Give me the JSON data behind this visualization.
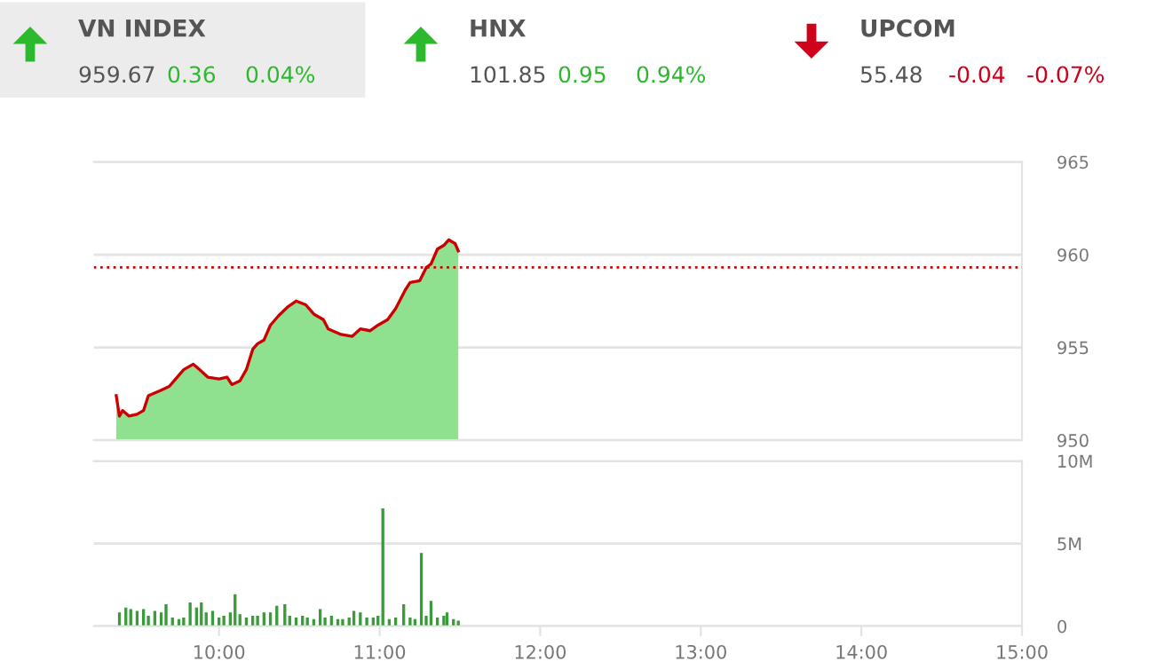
{
  "chart_data": [
    {
      "type": "other",
      "data_labels": true,
      "categories": [
        "VN INDEX",
        "HNX",
        "UPCOM"
      ],
      "colors": [
        "#2db92d",
        "#2db92d",
        "#d0021b"
      ],
      "series": [
        {
          "values": [
            959.67,
            101.85,
            55.48
          ]
        },
        {
          "values": [
            0.36,
            0.95,
            -0.04
          ]
        },
        {
          "values": [
            0.04,
            0.94,
            -0.07
          ],
          "value_labels": [
            "0.04%",
            "0.94%",
            "-0.07%"
          ]
        }
      ]
    },
    {
      "type": "area",
      "xlim": [
        9.22,
        15
      ],
      "ylim": [
        950,
        965
      ],
      "yticks": [
        950,
        955,
        960,
        965
      ],
      "grid": "y",
      "tick_labels": "y",
      "series": [
        {
          "type": "area",
          "color": "#8fe08f",
          "x": [
            9.36,
            9.38,
            9.4,
            9.44,
            9.49,
            9.53,
            9.56,
            9.64,
            9.69,
            9.73,
            9.78,
            9.84,
            9.88,
            9.93,
            10.0,
            10.05,
            10.08,
            10.13,
            10.17,
            10.21,
            10.24,
            10.28,
            10.32,
            10.37,
            10.43,
            10.48,
            10.54,
            10.59,
            10.65,
            10.68,
            10.76,
            10.83,
            10.88,
            10.94,
            10.99,
            11.05,
            11.1,
            11.16,
            11.19,
            11.25,
            11.29,
            11.32,
            11.36,
            11.4,
            11.43,
            11.47,
            11.49
          ],
          "values": [
            952.4,
            951.3,
            951.6,
            951.3,
            951.4,
            951.6,
            952.4,
            952.7,
            952.9,
            953.3,
            953.8,
            954.1,
            953.8,
            953.4,
            953.3,
            953.4,
            953.0,
            953.2,
            953.8,
            954.9,
            955.2,
            955.4,
            956.2,
            956.7,
            957.2,
            957.5,
            957.3,
            956.8,
            956.5,
            956.0,
            955.7,
            955.6,
            956.0,
            955.9,
            956.2,
            956.5,
            957.1,
            958.1,
            958.5,
            958.6,
            959.3,
            959.5,
            960.3,
            960.5,
            960.8,
            960.6,
            960.2
          ]
        },
        {
          "type": "line",
          "color": "#cc0000",
          "x": [
            9.36,
            9.38,
            9.4,
            9.44,
            9.49,
            9.53,
            9.56,
            9.64,
            9.69,
            9.73,
            9.78,
            9.84,
            9.88,
            9.93,
            10.0,
            10.05,
            10.08,
            10.13,
            10.17,
            10.21,
            10.24,
            10.28,
            10.32,
            10.37,
            10.43,
            10.48,
            10.54,
            10.59,
            10.65,
            10.68,
            10.76,
            10.83,
            10.88,
            10.94,
            10.99,
            11.05,
            11.1,
            11.16,
            11.19,
            11.25,
            11.29,
            11.32,
            11.36,
            11.4,
            11.43,
            11.47,
            11.49
          ],
          "values": [
            952.4,
            951.3,
            951.6,
            951.3,
            951.4,
            951.6,
            952.4,
            952.7,
            952.9,
            953.3,
            953.8,
            954.1,
            953.8,
            953.4,
            953.3,
            953.4,
            953.0,
            953.2,
            953.8,
            954.9,
            955.2,
            955.4,
            956.2,
            956.7,
            957.2,
            957.5,
            957.3,
            956.8,
            956.5,
            956.0,
            955.7,
            955.6,
            956.0,
            955.9,
            956.2,
            956.5,
            957.1,
            958.1,
            958.5,
            958.6,
            959.3,
            959.5,
            960.3,
            960.5,
            960.8,
            960.6,
            960.2
          ]
        }
      ],
      "ref_lines": [
        {
          "axis": "y",
          "value": 959.31,
          "color": "#cc0000",
          "line_style": "dotted"
        }
      ]
    },
    {
      "type": "bar",
      "xlim": [
        9.22,
        15
      ],
      "ylim": [
        0,
        10
      ],
      "grid": "y",
      "xticks": [
        {
          "value": 10,
          "label": "10:00"
        },
        {
          "value": 11,
          "label": "11:00"
        },
        {
          "value": 12,
          "label": "12:00"
        },
        {
          "value": 13,
          "label": "13:00"
        },
        {
          "value": 14,
          "label": "14:00"
        },
        {
          "value": 15,
          "label": "15:00"
        }
      ],
      "yticks": [
        0,
        {
          "value": 5,
          "label": "5M"
        },
        {
          "value": 10,
          "label": "10M"
        }
      ],
      "series": [
        {
          "color": "#3a9a3a",
          "x": [
            9.38,
            9.42,
            9.45,
            9.49,
            9.53,
            9.56,
            9.6,
            9.64,
            9.67,
            9.71,
            9.75,
            9.78,
            9.82,
            9.86,
            9.89,
            9.92,
            9.96,
            10.0,
            10.03,
            10.07,
            10.1,
            10.13,
            10.17,
            10.21,
            10.24,
            10.28,
            10.32,
            10.36,
            10.41,
            10.44,
            10.48,
            10.52,
            10.55,
            10.59,
            10.63,
            10.66,
            10.7,
            10.74,
            10.77,
            10.81,
            10.84,
            10.88,
            10.92,
            10.96,
            10.99,
            11.02,
            11.06,
            11.1,
            11.15,
            11.19,
            11.22,
            11.26,
            11.29,
            11.32,
            11.36,
            11.4,
            11.42,
            11.46,
            11.49
          ],
          "values": [
            0.8,
            1.1,
            1.0,
            0.9,
            1.0,
            0.6,
            0.9,
            0.8,
            1.3,
            0.5,
            0.4,
            0.5,
            1.4,
            1.1,
            1.4,
            0.8,
            0.9,
            0.5,
            0.6,
            0.8,
            1.9,
            0.7,
            0.5,
            0.6,
            0.6,
            0.8,
            0.8,
            1.2,
            1.3,
            0.6,
            0.5,
            0.6,
            0.5,
            0.4,
            1.0,
            0.5,
            0.6,
            0.4,
            0.4,
            0.5,
            0.9,
            0.8,
            0.5,
            0.5,
            0.6,
            7.1,
            0.4,
            0.5,
            1.3,
            0.5,
            0.4,
            4.4,
            0.6,
            1.5,
            0.5,
            0.6,
            0.8,
            0.4,
            0.3
          ]
        }
      ]
    }
  ]
}
